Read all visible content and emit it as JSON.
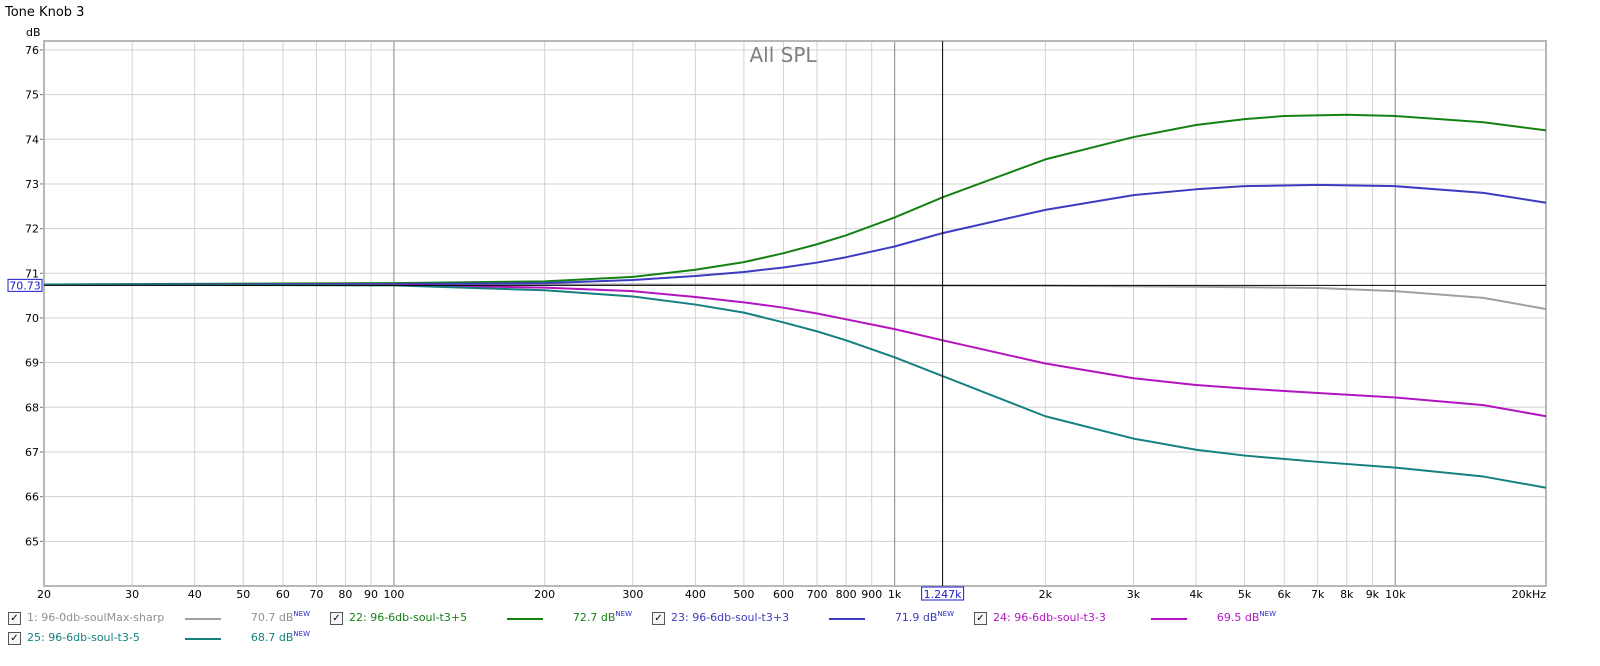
{
  "window_title": "Tone Knob 3",
  "chart_data": {
    "type": "line",
    "title": "All SPL",
    "ylabel": "dB",
    "x_scale": "log",
    "xlim": [
      20,
      20000
    ],
    "ylim": [
      64,
      76.2
    ],
    "y_ticks": [
      65,
      66,
      67,
      68,
      69,
      70,
      71,
      72,
      73,
      74,
      75,
      76
    ],
    "x_ticks": [
      {
        "v": 20,
        "label": "20"
      },
      {
        "v": 30,
        "label": "30"
      },
      {
        "v": 40,
        "label": "40"
      },
      {
        "v": 50,
        "label": "50"
      },
      {
        "v": 60,
        "label": "60"
      },
      {
        "v": 70,
        "label": "70"
      },
      {
        "v": 80,
        "label": "80"
      },
      {
        "v": 90,
        "label": "90"
      },
      {
        "v": 100,
        "label": "100"
      },
      {
        "v": 200,
        "label": "200"
      },
      {
        "v": 300,
        "label": "300"
      },
      {
        "v": 400,
        "label": "400"
      },
      {
        "v": 500,
        "label": "500"
      },
      {
        "v": 600,
        "label": "600"
      },
      {
        "v": 700,
        "label": "700"
      },
      {
        "v": 800,
        "label": "800"
      },
      {
        "v": 900,
        "label": "900"
      },
      {
        "v": 1000,
        "label": "1k"
      },
      {
        "v": 2000,
        "label": "2k"
      },
      {
        "v": 3000,
        "label": "3k"
      },
      {
        "v": 4000,
        "label": "4k"
      },
      {
        "v": 5000,
        "label": "5k"
      },
      {
        "v": 6000,
        "label": "6k"
      },
      {
        "v": 7000,
        "label": "7k"
      },
      {
        "v": 8000,
        "label": "8k"
      },
      {
        "v": 9000,
        "label": "9k"
      },
      {
        "v": 10000,
        "label": "10k"
      },
      {
        "v": 20000,
        "label": "20kHz"
      }
    ],
    "cursor": {
      "x": 1247,
      "x_label": "1.247k",
      "y": 70.73,
      "y_label": "70.73"
    },
    "grid": true,
    "legend_position": "bottom",
    "series": [
      {
        "id": "1",
        "name": "1: 96-0db-soulMax-sharp",
        "color": "#a0a0a0",
        "name_color": "#909090",
        "value_label": "70.7 dB",
        "badge": "NEW",
        "checked": true,
        "points": [
          [
            20,
            70.75
          ],
          [
            100,
            70.75
          ],
          [
            300,
            70.75
          ],
          [
            1000,
            70.73
          ],
          [
            2000,
            70.72
          ],
          [
            4000,
            70.7
          ],
          [
            7000,
            70.67
          ],
          [
            10000,
            70.6
          ],
          [
            15000,
            70.45
          ],
          [
            20000,
            70.2
          ]
        ]
      },
      {
        "id": "22",
        "name": "22: 96-6db-soul-t3+5",
        "color": "#138213",
        "name_color": "#138213",
        "value_label": "72.7 dB",
        "badge": "NEW",
        "checked": true,
        "points": [
          [
            20,
            70.75
          ],
          [
            100,
            70.78
          ],
          [
            200,
            70.82
          ],
          [
            300,
            70.92
          ],
          [
            400,
            71.08
          ],
          [
            500,
            71.25
          ],
          [
            600,
            71.45
          ],
          [
            700,
            71.65
          ],
          [
            800,
            71.85
          ],
          [
            1000,
            72.25
          ],
          [
            1247,
            72.7
          ],
          [
            2000,
            73.55
          ],
          [
            3000,
            74.05
          ],
          [
            4000,
            74.32
          ],
          [
            5000,
            74.45
          ],
          [
            6000,
            74.52
          ],
          [
            8000,
            74.55
          ],
          [
            10000,
            74.52
          ],
          [
            15000,
            74.38
          ],
          [
            20000,
            74.2
          ]
        ]
      },
      {
        "id": "23",
        "name": "23: 96-6db-soul-t3+3",
        "color": "#3c3cc2",
        "name_color": "#3c3cc2",
        "value_label": "71.9 dB",
        "badge": "NEW",
        "checked": true,
        "points": [
          [
            20,
            70.75
          ],
          [
            100,
            70.76
          ],
          [
            200,
            70.78
          ],
          [
            300,
            70.85
          ],
          [
            400,
            70.94
          ],
          [
            500,
            71.03
          ],
          [
            600,
            71.13
          ],
          [
            700,
            71.24
          ],
          [
            800,
            71.36
          ],
          [
            1000,
            71.6
          ],
          [
            1247,
            71.9
          ],
          [
            2000,
            72.42
          ],
          [
            3000,
            72.75
          ],
          [
            4000,
            72.88
          ],
          [
            5000,
            72.95
          ],
          [
            7000,
            72.98
          ],
          [
            10000,
            72.95
          ],
          [
            15000,
            72.8
          ],
          [
            20000,
            72.58
          ]
        ]
      },
      {
        "id": "24",
        "name": "24: 96-6db-soul-t3-3",
        "color": "#b314c0",
        "name_color": "#b314c0",
        "value_label": "69.5 dB",
        "badge": "NEW",
        "checked": true,
        "points": [
          [
            20,
            70.75
          ],
          [
            100,
            70.74
          ],
          [
            200,
            70.68
          ],
          [
            300,
            70.6
          ],
          [
            400,
            70.47
          ],
          [
            500,
            70.35
          ],
          [
            600,
            70.23
          ],
          [
            700,
            70.1
          ],
          [
            800,
            69.97
          ],
          [
            1000,
            69.75
          ],
          [
            1247,
            69.5
          ],
          [
            2000,
            68.98
          ],
          [
            3000,
            68.65
          ],
          [
            4000,
            68.5
          ],
          [
            5000,
            68.42
          ],
          [
            7000,
            68.32
          ],
          [
            10000,
            68.22
          ],
          [
            15000,
            68.05
          ],
          [
            20000,
            67.8
          ]
        ]
      },
      {
        "id": "25",
        "name": "25: 96-6db-soul-t3-5",
        "color": "#148080",
        "name_color": "#148080",
        "value_label": "68.7 dB",
        "badge": "NEW",
        "checked": true,
        "points": [
          [
            20,
            70.75
          ],
          [
            100,
            70.73
          ],
          [
            200,
            70.62
          ],
          [
            300,
            70.48
          ],
          [
            400,
            70.3
          ],
          [
            500,
            70.12
          ],
          [
            600,
            69.9
          ],
          [
            700,
            69.7
          ],
          [
            800,
            69.5
          ],
          [
            1000,
            69.12
          ],
          [
            1247,
            68.7
          ],
          [
            2000,
            67.8
          ],
          [
            3000,
            67.3
          ],
          [
            4000,
            67.05
          ],
          [
            5000,
            66.92
          ],
          [
            7000,
            66.78
          ],
          [
            10000,
            66.65
          ],
          [
            15000,
            66.45
          ],
          [
            20000,
            66.2
          ]
        ]
      }
    ]
  }
}
